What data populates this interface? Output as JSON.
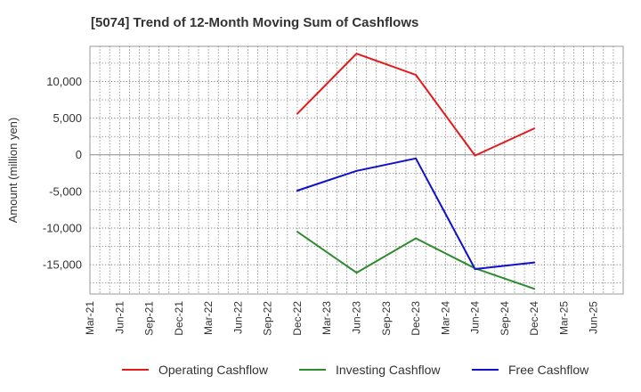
{
  "chart_data": {
    "type": "line",
    "title": "[5074]  Trend of 12-Month Moving Sum of Cashflows",
    "xlabel": "",
    "ylabel": "Amount (million yen)",
    "x": [
      "Mar-21",
      "Jun-21",
      "Sep-21",
      "Dec-21",
      "Mar-22",
      "Jun-22",
      "Sep-22",
      "Dec-22",
      "Mar-23",
      "Jun-23",
      "Sep-23",
      "Dec-23",
      "Mar-24",
      "Jun-24",
      "Sep-24",
      "Dec-24",
      "Mar-25",
      "Jun-25"
    ],
    "ylim": [
      -19000,
      14800
    ],
    "yticks": [
      10000,
      5000,
      0,
      -5000,
      -10000,
      -15000
    ],
    "ytick_labels": [
      "10,000",
      "5,000",
      "0",
      "-5,000",
      "-10,000",
      "-15,000"
    ],
    "grid": true,
    "legend_position": "bottom",
    "series": [
      {
        "name": "Operating Cashflow",
        "color": "#e41a1c",
        "x": [
          "Dec-22",
          "Jun-23",
          "Dec-23",
          "Jun-24",
          "Dec-24"
        ],
        "values": [
          5600,
          13800,
          10900,
          -100,
          3600
        ]
      },
      {
        "name": "Investing Cashflow",
        "color": "#2e8b2e",
        "x": [
          "Dec-22",
          "Jun-23",
          "Dec-23",
          "Jun-24",
          "Dec-24"
        ],
        "values": [
          -10500,
          -16100,
          -11400,
          -15500,
          -18300
        ]
      },
      {
        "name": "Free Cashflow",
        "color": "#1010cc",
        "x": [
          "Dec-22",
          "Jun-23",
          "Dec-23",
          "Jun-24",
          "Dec-24"
        ],
        "values": [
          -4900,
          -2200,
          -500,
          -15600,
          -14700
        ]
      }
    ]
  }
}
